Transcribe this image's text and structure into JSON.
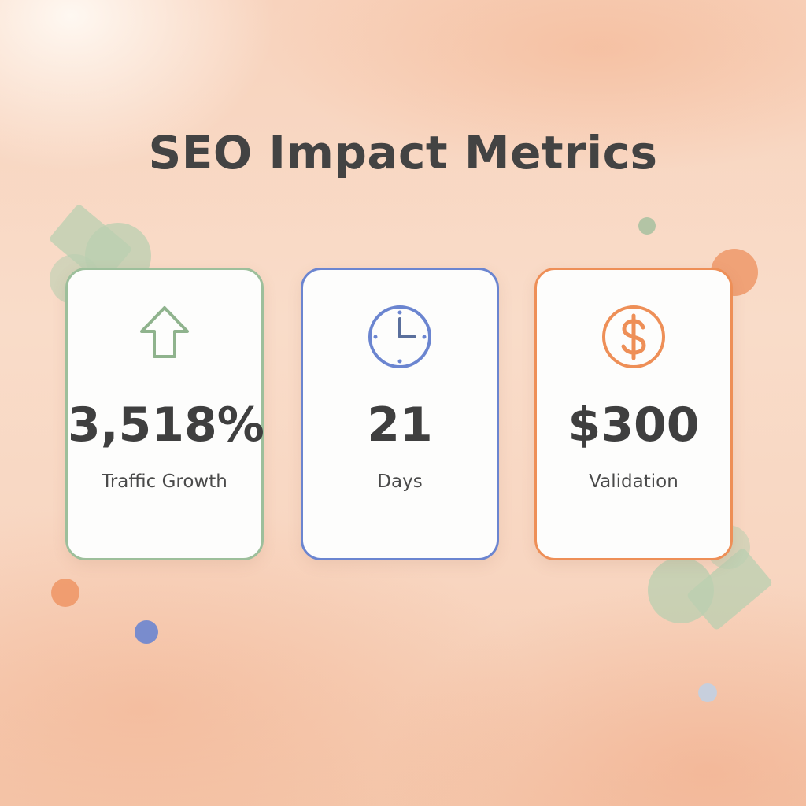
{
  "title": "SEO Impact Metrics",
  "colors": {
    "green": "#9dbf9b",
    "blue": "#6b85d0",
    "orange": "#ee8f57",
    "text": "#434343"
  },
  "metrics": [
    {
      "value": "3,518%",
      "label": "Traffic Growth",
      "icon": "arrow-up-icon",
      "color": "#9dbf9b"
    },
    {
      "value": "21",
      "label": "Days",
      "icon": "clock-icon",
      "color": "#6b85d0"
    },
    {
      "value": "$300",
      "label": "Validation",
      "icon": "dollar-icon",
      "color": "#ee8f57"
    }
  ]
}
